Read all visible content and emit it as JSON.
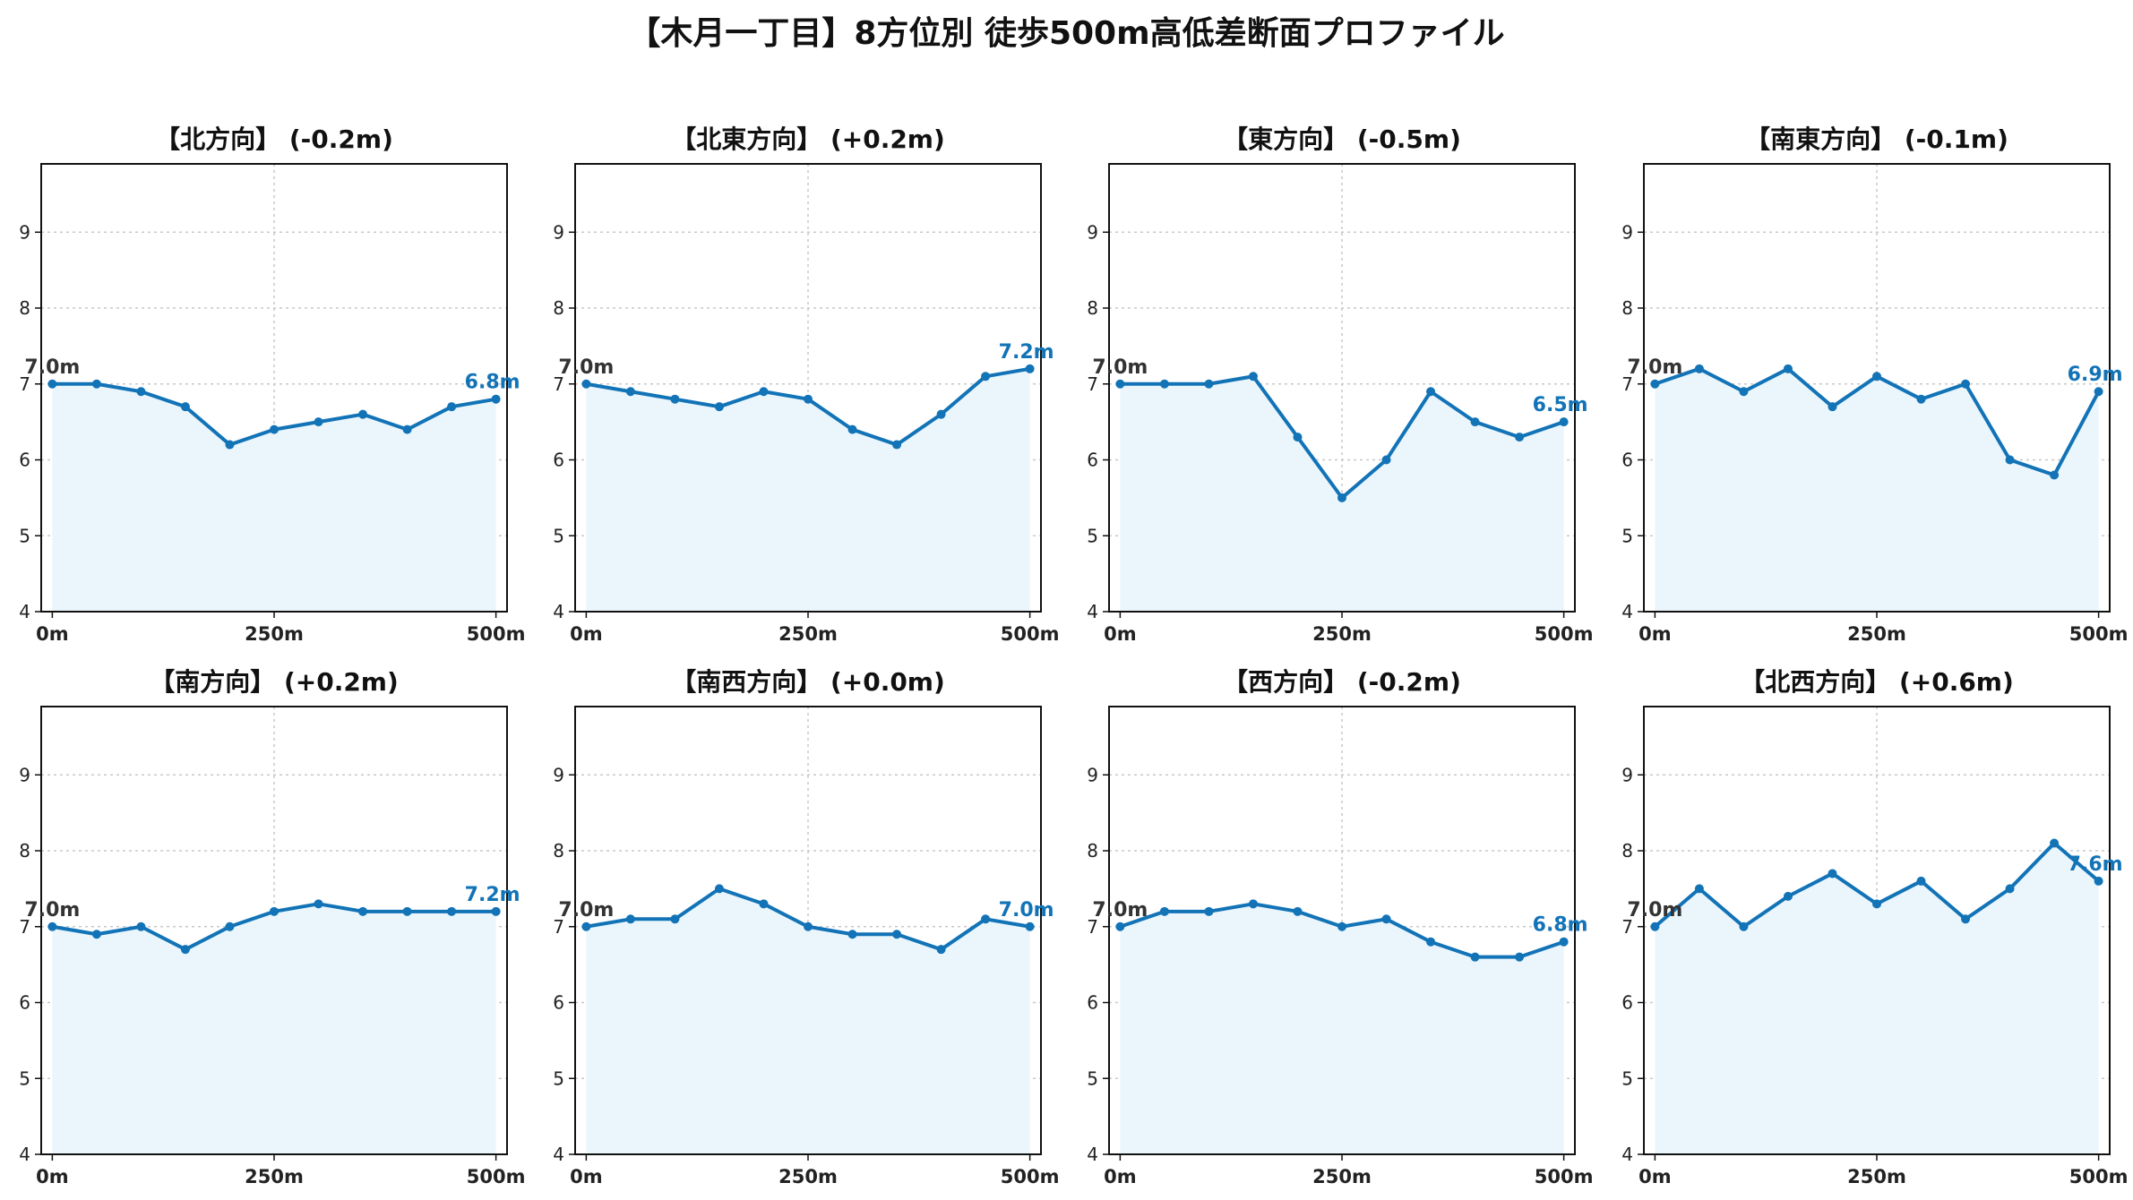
{
  "title": "【木月一丁目】8方位別 徒歩500m高低差断面プロファイル",
  "colors": {
    "line": "#1273b7",
    "fill": "#eaf6fc",
    "grid": "#c8c8c8",
    "start_label": "#333333",
    "end_label": "#1273b7"
  },
  "chart_data": [
    {
      "type": "area",
      "title": "【北方向】 (-0.2m)",
      "x": [
        0,
        50,
        100,
        150,
        200,
        250,
        300,
        350,
        400,
        450,
        500
      ],
      "y": [
        7.0,
        7.0,
        6.9,
        6.7,
        6.2,
        6.4,
        6.5,
        6.6,
        6.4,
        6.7,
        6.8
      ],
      "ylim": [
        4,
        9.9
      ],
      "yticks": [
        "4",
        "5",
        "6",
        "7",
        "8",
        "9"
      ],
      "xticks": [
        "0m",
        "250m",
        "500m"
      ],
      "start_label": "7.0m",
      "end_label": "6.8m",
      "grid": true
    },
    {
      "type": "area",
      "title": "【北東方向】 (+0.2m)",
      "x": [
        0,
        50,
        100,
        150,
        200,
        250,
        300,
        350,
        400,
        450,
        500
      ],
      "y": [
        7.0,
        6.9,
        6.8,
        6.7,
        6.9,
        6.8,
        6.4,
        6.2,
        6.6,
        7.1,
        7.2
      ],
      "ylim": [
        4,
        9.9
      ],
      "yticks": [
        "4",
        "5",
        "6",
        "7",
        "8",
        "9"
      ],
      "xticks": [
        "0m",
        "250m",
        "500m"
      ],
      "start_label": "7.0m",
      "end_label": "7.2m",
      "grid": true
    },
    {
      "type": "area",
      "title": "【東方向】 (-0.5m)",
      "x": [
        0,
        50,
        100,
        150,
        200,
        250,
        300,
        350,
        400,
        450,
        500
      ],
      "y": [
        7.0,
        7.0,
        7.0,
        7.1,
        6.3,
        5.5,
        6.0,
        6.9,
        6.5,
        6.3,
        6.5
      ],
      "ylim": [
        4,
        9.9
      ],
      "yticks": [
        "4",
        "5",
        "6",
        "7",
        "8",
        "9"
      ],
      "xticks": [
        "0m",
        "250m",
        "500m"
      ],
      "start_label": "7.0m",
      "end_label": "6.5m",
      "grid": true
    },
    {
      "type": "area",
      "title": "【南東方向】 (-0.1m)",
      "x": [
        0,
        50,
        100,
        150,
        200,
        250,
        300,
        350,
        400,
        450,
        500
      ],
      "y": [
        7.0,
        7.2,
        6.9,
        7.2,
        6.7,
        7.1,
        6.8,
        7.0,
        6.0,
        5.8,
        6.9
      ],
      "ylim": [
        4,
        9.9
      ],
      "yticks": [
        "4",
        "5",
        "6",
        "7",
        "8",
        "9"
      ],
      "xticks": [
        "0m",
        "250m",
        "500m"
      ],
      "start_label": "7.0m",
      "end_label": "6.9m",
      "grid": true
    },
    {
      "type": "area",
      "title": "【南方向】 (+0.2m)",
      "x": [
        0,
        50,
        100,
        150,
        200,
        250,
        300,
        350,
        400,
        450,
        500
      ],
      "y": [
        7.0,
        6.9,
        7.0,
        6.7,
        7.0,
        7.2,
        7.3,
        7.2,
        7.2,
        7.2,
        7.2
      ],
      "ylim": [
        4,
        9.9
      ],
      "yticks": [
        "4",
        "5",
        "6",
        "7",
        "8",
        "9"
      ],
      "xticks": [
        "0m",
        "250m",
        "500m"
      ],
      "start_label": "7.0m",
      "end_label": "7.2m",
      "grid": true
    },
    {
      "type": "area",
      "title": "【南西方向】 (+0.0m)",
      "x": [
        0,
        50,
        100,
        150,
        200,
        250,
        300,
        350,
        400,
        450,
        500
      ],
      "y": [
        7.0,
        7.1,
        7.1,
        7.5,
        7.3,
        7.0,
        6.9,
        6.9,
        6.7,
        7.1,
        7.0
      ],
      "ylim": [
        4,
        9.9
      ],
      "yticks": [
        "4",
        "5",
        "6",
        "7",
        "8",
        "9"
      ],
      "xticks": [
        "0m",
        "250m",
        "500m"
      ],
      "start_label": "7.0m",
      "end_label": "7.0m",
      "grid": true
    },
    {
      "type": "area",
      "title": "【西方向】 (-0.2m)",
      "x": [
        0,
        50,
        100,
        150,
        200,
        250,
        300,
        350,
        400,
        450,
        500
      ],
      "y": [
        7.0,
        7.2,
        7.2,
        7.3,
        7.2,
        7.0,
        7.1,
        6.8,
        6.6,
        6.6,
        6.8
      ],
      "ylim": [
        4,
        9.9
      ],
      "yticks": [
        "4",
        "5",
        "6",
        "7",
        "8",
        "9"
      ],
      "xticks": [
        "0m",
        "250m",
        "500m"
      ],
      "start_label": "7.0m",
      "end_label": "6.8m",
      "grid": true
    },
    {
      "type": "area",
      "title": "【北西方向】 (+0.6m)",
      "x": [
        0,
        50,
        100,
        150,
        200,
        250,
        300,
        350,
        400,
        450,
        500
      ],
      "y": [
        7.0,
        7.5,
        7.0,
        7.4,
        7.7,
        7.3,
        7.6,
        7.1,
        7.5,
        8.1,
        7.6
      ],
      "ylim": [
        4,
        9.9
      ],
      "yticks": [
        "4",
        "5",
        "6",
        "7",
        "8",
        "9"
      ],
      "xticks": [
        "0m",
        "250m",
        "500m"
      ],
      "start_label": "7.0m",
      "end_label": "7.6m",
      "grid": true
    }
  ]
}
